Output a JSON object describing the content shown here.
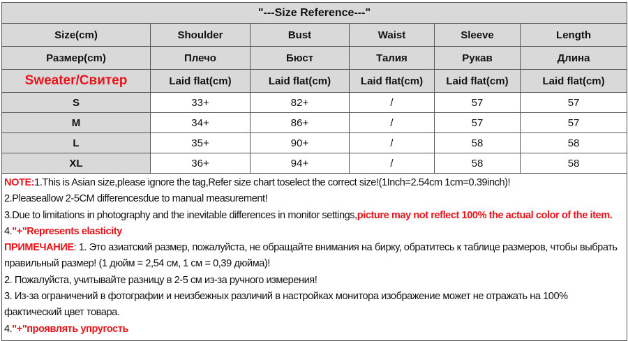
{
  "title": "\"---Size Reference---\"",
  "headers": [
    [
      "Size(cm)",
      "Shoulder",
      "Bust",
      "Waist",
      "Sleeve",
      "Length"
    ],
    [
      "Размер(cm)",
      "Плечо",
      "Бюст",
      "Талия",
      "Рукав",
      "Длина"
    ],
    [
      "Sweater/Свитер",
      "Laid flat(cm)",
      "Laid flat(cm)",
      "Laid flat(cm)",
      "Laid flat(cm)",
      "Laid flat(cm)"
    ]
  ],
  "rows": [
    [
      "S",
      "33+",
      "82+",
      "/",
      "57",
      "57"
    ],
    [
      "M",
      "34+",
      "86+",
      "/",
      "57",
      "57"
    ],
    [
      "L",
      "35+",
      "90+",
      "/",
      "58",
      "58"
    ],
    [
      "XL",
      "36+",
      "94+",
      "/",
      "58",
      "58"
    ]
  ],
  "notes": {
    "n1_label": "NOTE:",
    "n1": "1.This is Asian size,please ignore the tag,Refer size chart toselect the correct size!(1Inch=2.54cm 1cm=0.39inch)!",
    "n2": "2.Pleaseallow 2-5CM differencesdue to manual measurement!",
    "n3": "3.Due to limitations in photography and the inevitable differences in monitor settings,",
    "n3_red": "picture may not reflect 100% the actual color of the item.",
    "n4_prefix": "4.",
    "n4_red": "\"+\"Represents elasticity",
    "r1_label": "ПРИМЕЧАНИЕ",
    "r1": ": 1. Это азиатский размер, пожалуйста, не обращайте внимания на бирку, обратитесь к таблице размеров, чтобы выбрать правильный размер! (1 дюйм = 2,54 см, 1 см = 0,39 дюйма)!",
    "r2": "2. Пожалуйста, учитывайте разницу в 2-5 см из-за ручного измерения!",
    "r3": "3. Из-за ограничений в фотографии и неизбежных различий в настройках монитора изображение может не отражать на 100% фактический цвет товара.",
    "r4_prefix": "4.",
    "r4_red": "\"+\"проявлять упругость"
  },
  "colors": {
    "accent_red": "#e8141b",
    "header_gray": "#d9d9d9"
  }
}
